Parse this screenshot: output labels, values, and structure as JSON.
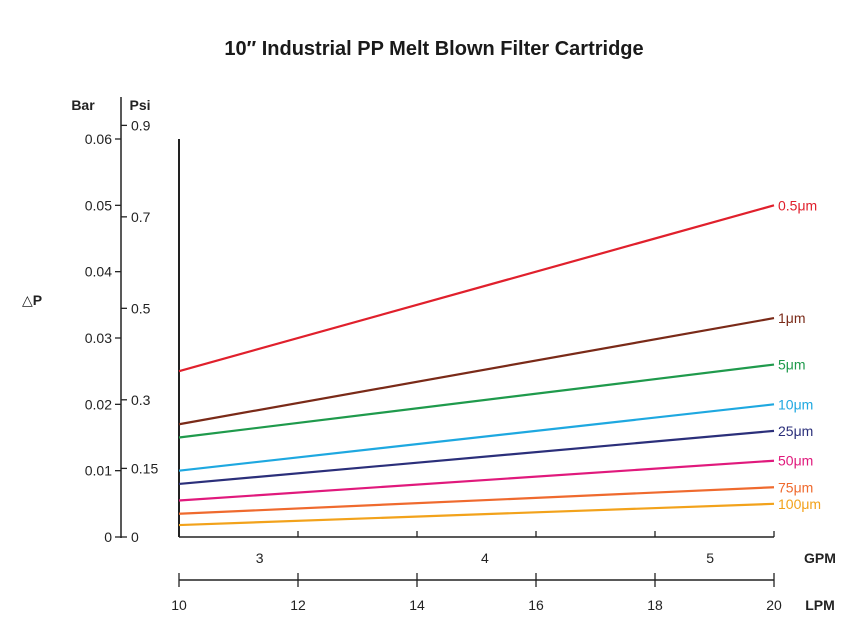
{
  "chart_data": {
    "type": "line",
    "title": "10″ Industrial PP Melt Blown Filter Cartridge",
    "ylabel": "△P",
    "y_axes": [
      {
        "unit": "Bar",
        "ticks": [
          "0",
          "0.01",
          "0.02",
          "0.03",
          "0.04",
          "0.05",
          "0.06"
        ],
        "tick_values": [
          0,
          0.01,
          0.02,
          0.03,
          0.04,
          0.05,
          0.06
        ]
      },
      {
        "unit": "Psi",
        "ticks": [
          "0",
          "0.15",
          "0.3",
          "0.5",
          "0.7",
          "0.9"
        ],
        "tick_values": [
          0,
          0.15,
          0.3,
          0.5,
          0.7,
          0.9
        ]
      }
    ],
    "x_axes": [
      {
        "unit": "GPM",
        "ticks": [
          "3",
          "4",
          "5"
        ],
        "tick_values": [
          3,
          4,
          5
        ]
      },
      {
        "unit": "LPM",
        "ticks": [
          "10",
          "12",
          "14",
          "16",
          "18",
          "20"
        ],
        "tick_values": [
          10,
          12,
          14,
          16,
          18,
          20
        ]
      }
    ],
    "xlim": [
      10,
      20
    ],
    "ylim": [
      0,
      0.06
    ],
    "grid": false,
    "series": [
      {
        "name": "0.5μm",
        "color": "#e0202c",
        "x": [
          10,
          20
        ],
        "y": [
          0.025,
          0.05
        ]
      },
      {
        "name": "1μm",
        "color": "#7a2a18",
        "x": [
          10,
          20
        ],
        "y": [
          0.017,
          0.033
        ]
      },
      {
        "name": "5μm",
        "color": "#1f9a4c",
        "x": [
          10,
          20
        ],
        "y": [
          0.015,
          0.026
        ]
      },
      {
        "name": "10μm",
        "color": "#1ea8e0",
        "x": [
          10,
          20
        ],
        "y": [
          0.01,
          0.02
        ]
      },
      {
        "name": "25μm",
        "color": "#2b2f7a",
        "x": [
          10,
          20
        ],
        "y": [
          0.008,
          0.016
        ]
      },
      {
        "name": "50μm",
        "color": "#e0197c",
        "x": [
          10,
          20
        ],
        "y": [
          0.0055,
          0.0115
        ]
      },
      {
        "name": "75μm",
        "color": "#ef6a2e",
        "x": [
          10,
          20
        ],
        "y": [
          0.0035,
          0.0075
        ]
      },
      {
        "name": "100μm",
        "color": "#f2a21b",
        "x": [
          10,
          20
        ],
        "y": [
          0.0018,
          0.005
        ]
      }
    ]
  }
}
